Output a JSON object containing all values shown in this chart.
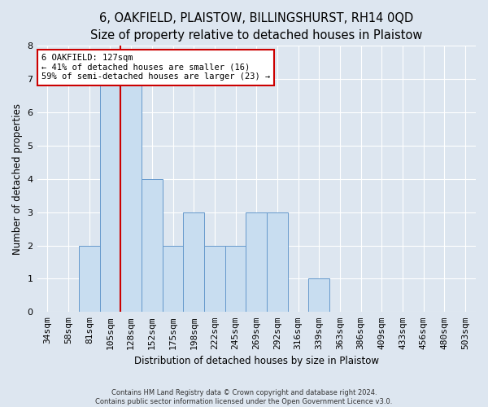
{
  "title": "6, OAKFIELD, PLAISTOW, BILLINGSHURST, RH14 0QD",
  "subtitle": "Size of property relative to detached houses in Plaistow",
  "xlabel": "Distribution of detached houses by size in Plaistow",
  "ylabel": "Number of detached properties",
  "footer_line1": "Contains HM Land Registry data © Crown copyright and database right 2024.",
  "footer_line2": "Contains public sector information licensed under the Open Government Licence v3.0.",
  "categories": [
    "34sqm",
    "58sqm",
    "81sqm",
    "105sqm",
    "128sqm",
    "152sqm",
    "175sqm",
    "198sqm",
    "222sqm",
    "245sqm",
    "269sqm",
    "292sqm",
    "316sqm",
    "339sqm",
    "363sqm",
    "386sqm",
    "409sqm",
    "433sqm",
    "456sqm",
    "480sqm",
    "503sqm"
  ],
  "values": [
    0,
    0,
    2,
    7,
    7,
    4,
    2,
    3,
    2,
    2,
    3,
    3,
    0,
    1,
    0,
    0,
    0,
    0,
    0,
    0,
    0
  ],
  "bar_color": "#c8ddf0",
  "bar_edge_color": "#6699cc",
  "property_line_index": 4,
  "property_line_color": "#cc0000",
  "annotation_line1": "6 OAKFIELD: 127sqm",
  "annotation_line2": "← 41% of detached houses are smaller (16)",
  "annotation_line3": "59% of semi-detached houses are larger (23) →",
  "annotation_box_color": "#cc0000",
  "ylim": [
    0,
    8
  ],
  "yticks": [
    0,
    1,
    2,
    3,
    4,
    5,
    6,
    7,
    8
  ],
  "title_fontsize": 10.5,
  "subtitle_fontsize": 9.5,
  "ylabel_fontsize": 8.5,
  "xlabel_fontsize": 8.5,
  "tick_fontsize": 8,
  "annot_fontsize": 7.5,
  "footer_fontsize": 6.0,
  "bg_color": "#dde6f0"
}
